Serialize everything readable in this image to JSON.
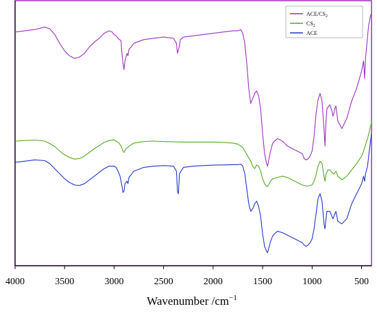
{
  "chart_data": {
    "type": "line",
    "xlabel": "Wavenumber /cm",
    "xlabel_sup": "−1",
    "ylabel": "",
    "x_reversed": true,
    "xlim": [
      4000,
      400
    ],
    "ylim": [
      0,
      1
    ],
    "x_ticks": [
      4000,
      3500,
      3000,
      2500,
      2000,
      1500,
      1000,
      500
    ],
    "tick_labels": [
      "4000",
      "3500",
      "3000",
      "2500",
      "2000",
      "1500",
      "1000",
      "500"
    ],
    "grid": false,
    "legend_position": "top-right",
    "legend": [
      {
        "name": "ACE/CS",
        "sub": "2",
        "color": "#9b2fbf"
      },
      {
        "name": "CS",
        "sub": "2",
        "color": "#54a81e"
      },
      {
        "name": "ACE",
        "sub": "",
        "color": "#1f35c8"
      }
    ],
    "series": [
      {
        "name": "ACE/CS2",
        "color": "#9b2fbf",
        "x": [
          4000,
          3900,
          3800,
          3750,
          3700,
          3650,
          3600,
          3550,
          3500,
          3450,
          3400,
          3350,
          3300,
          3250,
          3200,
          3150,
          3100,
          3050,
          3020,
          3000,
          2980,
          2960,
          2930,
          2925,
          2910,
          2900,
          2890,
          2870,
          2860,
          2850,
          2800,
          2700,
          2600,
          2500,
          2400,
          2370,
          2360,
          2340,
          2330,
          2300,
          2200,
          2100,
          2000,
          1900,
          1800,
          1750,
          1720,
          1700,
          1680,
          1660,
          1640,
          1620,
          1600,
          1580,
          1560,
          1540,
          1520,
          1500,
          1480,
          1460,
          1450,
          1440,
          1420,
          1400,
          1380,
          1350,
          1300,
          1250,
          1200,
          1150,
          1100,
          1080,
          1060,
          1040,
          1020,
          1000,
          980,
          960,
          940,
          920,
          900,
          880,
          870,
          860,
          850,
          820,
          800,
          790,
          780,
          770,
          760,
          740,
          700,
          650,
          600,
          550,
          500,
          480,
          470,
          460,
          430,
          410,
          400
        ],
        "y": [
          0.905,
          0.91,
          0.915,
          0.92,
          0.925,
          0.918,
          0.895,
          0.86,
          0.83,
          0.81,
          0.8,
          0.805,
          0.82,
          0.845,
          0.865,
          0.88,
          0.9,
          0.91,
          0.905,
          0.895,
          0.89,
          0.88,
          0.87,
          0.84,
          0.78,
          0.755,
          0.79,
          0.82,
          0.81,
          0.835,
          0.86,
          0.875,
          0.88,
          0.885,
          0.88,
          0.86,
          0.82,
          0.85,
          0.875,
          0.885,
          0.89,
          0.895,
          0.9,
          0.905,
          0.91,
          0.91,
          0.915,
          0.9,
          0.86,
          0.78,
          0.68,
          0.62,
          0.64,
          0.66,
          0.67,
          0.65,
          0.6,
          0.5,
          0.42,
          0.38,
          0.37,
          0.39,
          0.43,
          0.46,
          0.47,
          0.48,
          0.47,
          0.45,
          0.44,
          0.43,
          0.42,
          0.4,
          0.395,
          0.4,
          0.41,
          0.43,
          0.49,
          0.58,
          0.635,
          0.66,
          0.63,
          0.52,
          0.45,
          0.55,
          0.6,
          0.615,
          0.59,
          0.57,
          0.58,
          0.6,
          0.61,
          0.55,
          0.52,
          0.56,
          0.63,
          0.68,
          0.75,
          0.79,
          0.72,
          0.8,
          0.93,
          0.97,
          0.98
        ]
      },
      {
        "name": "CS2",
        "color": "#54a81e",
        "x": [
          4000,
          3900,
          3800,
          3700,
          3650,
          3600,
          3550,
          3500,
          3450,
          3400,
          3350,
          3300,
          3250,
          3200,
          3150,
          3100,
          3050,
          3000,
          2980,
          2950,
          2930,
          2910,
          2900,
          2880,
          2860,
          2850,
          2800,
          2700,
          2600,
          2500,
          2400,
          2300,
          2200,
          2100,
          2000,
          1900,
          1800,
          1750,
          1700,
          1680,
          1650,
          1620,
          1600,
          1580,
          1560,
          1540,
          1520,
          1500,
          1480,
          1460,
          1450,
          1440,
          1420,
          1400,
          1350,
          1300,
          1250,
          1200,
          1150,
          1100,
          1050,
          1000,
          980,
          960,
          940,
          920,
          900,
          880,
          870,
          860,
          840,
          820,
          800,
          780,
          770,
          760,
          740,
          700,
          650,
          600,
          550,
          500,
          480,
          460,
          440,
          420,
          400
        ],
        "y": [
          0.47,
          0.472,
          0.474,
          0.47,
          0.46,
          0.448,
          0.43,
          0.415,
          0.405,
          0.398,
          0.4,
          0.41,
          0.425,
          0.44,
          0.452,
          0.465,
          0.472,
          0.475,
          0.47,
          0.462,
          0.45,
          0.43,
          0.425,
          0.44,
          0.445,
          0.45,
          0.462,
          0.468,
          0.47,
          0.468,
          0.467,
          0.466,
          0.466,
          0.466,
          0.466,
          0.465,
          0.462,
          0.458,
          0.445,
          0.43,
          0.41,
          0.39,
          0.37,
          0.36,
          0.375,
          0.37,
          0.35,
          0.32,
          0.3,
          0.29,
          0.288,
          0.295,
          0.31,
          0.32,
          0.325,
          0.33,
          0.325,
          0.315,
          0.305,
          0.295,
          0.29,
          0.295,
          0.31,
          0.335,
          0.37,
          0.39,
          0.38,
          0.33,
          0.31,
          0.34,
          0.355,
          0.355,
          0.345,
          0.338,
          0.345,
          0.35,
          0.33,
          0.315,
          0.33,
          0.355,
          0.38,
          0.41,
          0.43,
          0.455,
          0.48,
          0.51,
          0.545
        ]
      },
      {
        "name": "ACE",
        "color": "#1f35c8",
        "x": [
          4000,
          3900,
          3800,
          3700,
          3650,
          3600,
          3550,
          3500,
          3450,
          3400,
          3350,
          3300,
          3250,
          3200,
          3150,
          3100,
          3050,
          3000,
          2980,
          2960,
          2940,
          2920,
          2910,
          2900,
          2890,
          2870,
          2860,
          2850,
          2800,
          2700,
          2600,
          2500,
          2400,
          2370,
          2360,
          2350,
          2340,
          2300,
          2200,
          2100,
          2000,
          1900,
          1800,
          1750,
          1720,
          1700,
          1680,
          1660,
          1640,
          1620,
          1600,
          1580,
          1560,
          1540,
          1520,
          1500,
          1480,
          1460,
          1450,
          1440,
          1420,
          1400,
          1380,
          1350,
          1300,
          1250,
          1200,
          1150,
          1100,
          1080,
          1060,
          1040,
          1020,
          1000,
          980,
          960,
          940,
          920,
          900,
          880,
          870,
          860,
          850,
          820,
          800,
          790,
          780,
          770,
          760,
          740,
          700,
          650,
          600,
          550,
          500,
          480,
          470,
          460,
          440,
          420,
          400
        ],
        "y": [
          0.385,
          0.39,
          0.395,
          0.392,
          0.38,
          0.36,
          0.34,
          0.32,
          0.305,
          0.295,
          0.293,
          0.3,
          0.315,
          0.33,
          0.345,
          0.36,
          0.37,
          0.37,
          0.365,
          0.35,
          0.33,
          0.29,
          0.265,
          0.27,
          0.3,
          0.31,
          0.3,
          0.325,
          0.35,
          0.365,
          0.37,
          0.372,
          0.37,
          0.35,
          0.27,
          0.26,
          0.34,
          0.365,
          0.37,
          0.372,
          0.374,
          0.375,
          0.376,
          0.376,
          0.378,
          0.37,
          0.34,
          0.28,
          0.22,
          0.19,
          0.2,
          0.22,
          0.23,
          0.21,
          0.17,
          0.1,
          0.05,
          0.03,
          0.025,
          0.04,
          0.07,
          0.09,
          0.1,
          0.11,
          0.105,
          0.095,
          0.085,
          0.075,
          0.065,
          0.055,
          0.05,
          0.055,
          0.065,
          0.08,
          0.12,
          0.18,
          0.24,
          0.26,
          0.23,
          0.14,
          0.12,
          0.16,
          0.19,
          0.19,
          0.17,
          0.16,
          0.17,
          0.18,
          0.19,
          0.15,
          0.14,
          0.16,
          0.22,
          0.26,
          0.3,
          0.33,
          0.31,
          0.34,
          0.37,
          0.44,
          0.5
        ]
      }
    ]
  }
}
